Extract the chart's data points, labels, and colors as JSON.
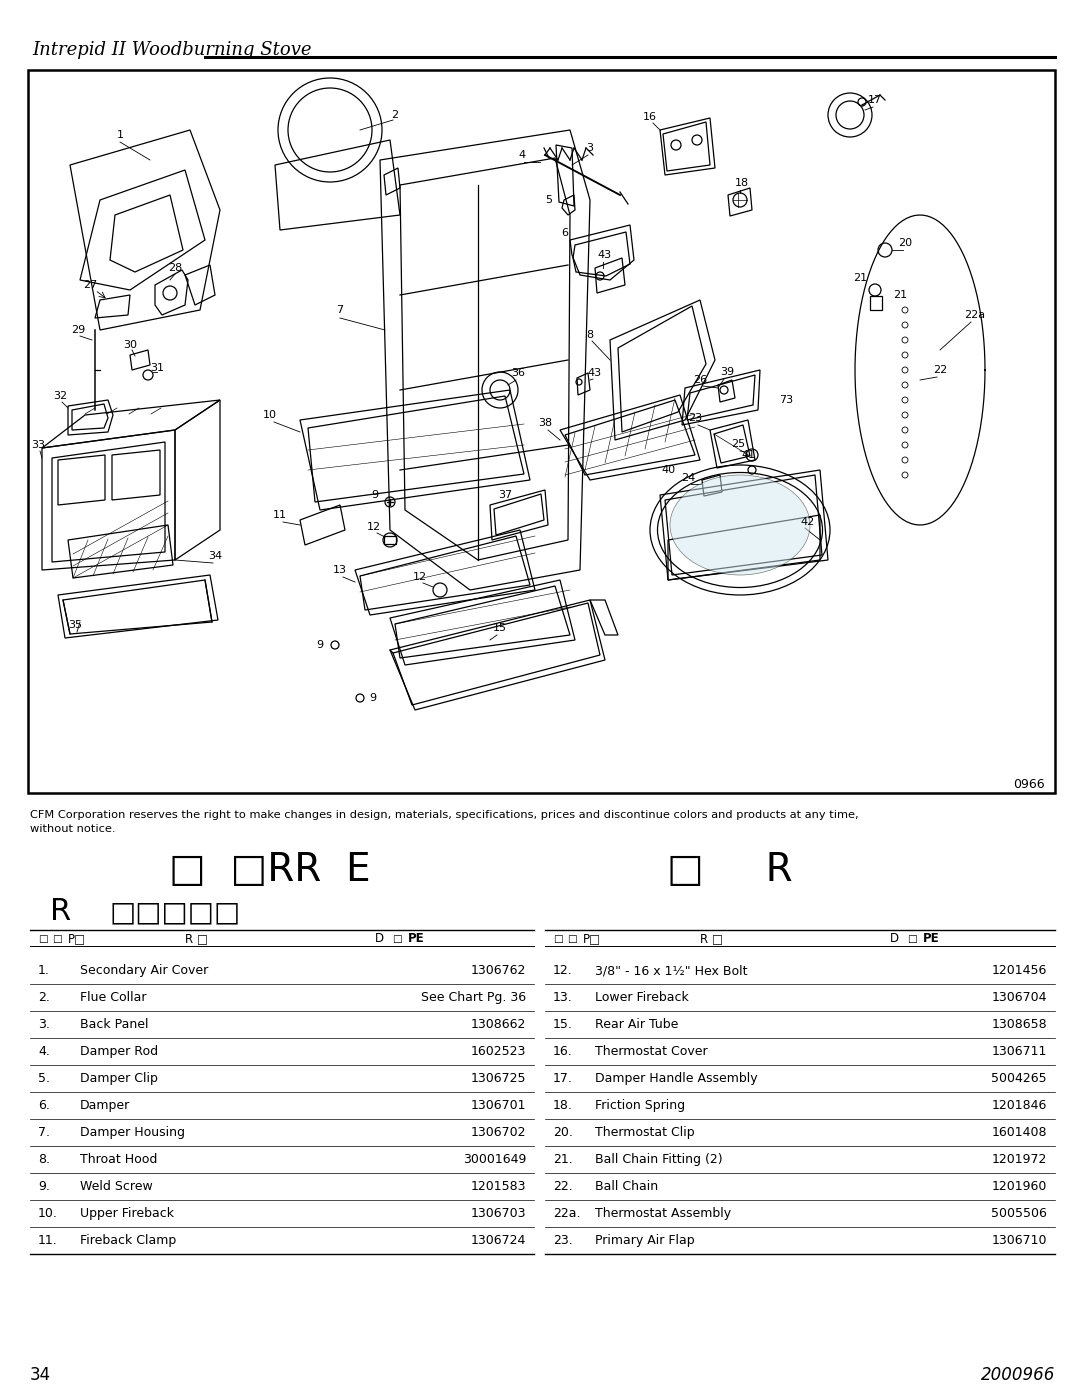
{
  "page_title": "Intrepid II Woodburning Stove",
  "disclaimer": "CFM Corporation reserves the right to make changes in design, materials, specifications, prices and discontinue colors and products at any time,\nwithout notice.",
  "section_title": "□  □RR  E                    □     R",
  "subsection_title": "R     □□□□□",
  "parts_left": [
    [
      "1.",
      "Secondary Air Cover",
      "1306762"
    ],
    [
      "2.",
      "Flue Collar",
      "See Chart Pg. 36"
    ],
    [
      "3.",
      "Back Panel",
      "1308662"
    ],
    [
      "4.",
      "Damper Rod",
      "1602523"
    ],
    [
      "5.",
      "Damper Clip",
      "1306725"
    ],
    [
      "6.",
      "Damper",
      "1306701"
    ],
    [
      "7.",
      "Damper Housing",
      "1306702"
    ],
    [
      "8.",
      "Throat Hood",
      "30001649"
    ],
    [
      "9.",
      "Weld Screw",
      "1201583"
    ],
    [
      "10.",
      "Upper Fireback",
      "1306703"
    ],
    [
      "11.",
      "Fireback Clamp",
      "1306724"
    ]
  ],
  "parts_right": [
    [
      "12.",
      "3/8\" - 16 x 1½\" Hex Bolt",
      "1201456"
    ],
    [
      "13.",
      "Lower Fireback",
      "1306704"
    ],
    [
      "15.",
      "Rear Air Tube",
      "1308658"
    ],
    [
      "16.",
      "Thermostat Cover",
      "1306711"
    ],
    [
      "17.",
      "Damper Handle Assembly",
      "5004265"
    ],
    [
      "18.",
      "Friction Spring",
      "1201846"
    ],
    [
      "20.",
      "Thermostat Clip",
      "1601408"
    ],
    [
      "21.",
      "Ball Chain Fitting (2)",
      "1201972"
    ],
    [
      "22.",
      "Ball Chain",
      "1201960"
    ],
    [
      "22a.",
      "Thermostat Assembly",
      "5005506"
    ],
    [
      "23.",
      "Primary Air Flap",
      "1306710"
    ]
  ],
  "page_number": "34",
  "doc_number": "2000966",
  "diagram_code": "0966",
  "background_color": "#ffffff",
  "text_color": "#000000"
}
